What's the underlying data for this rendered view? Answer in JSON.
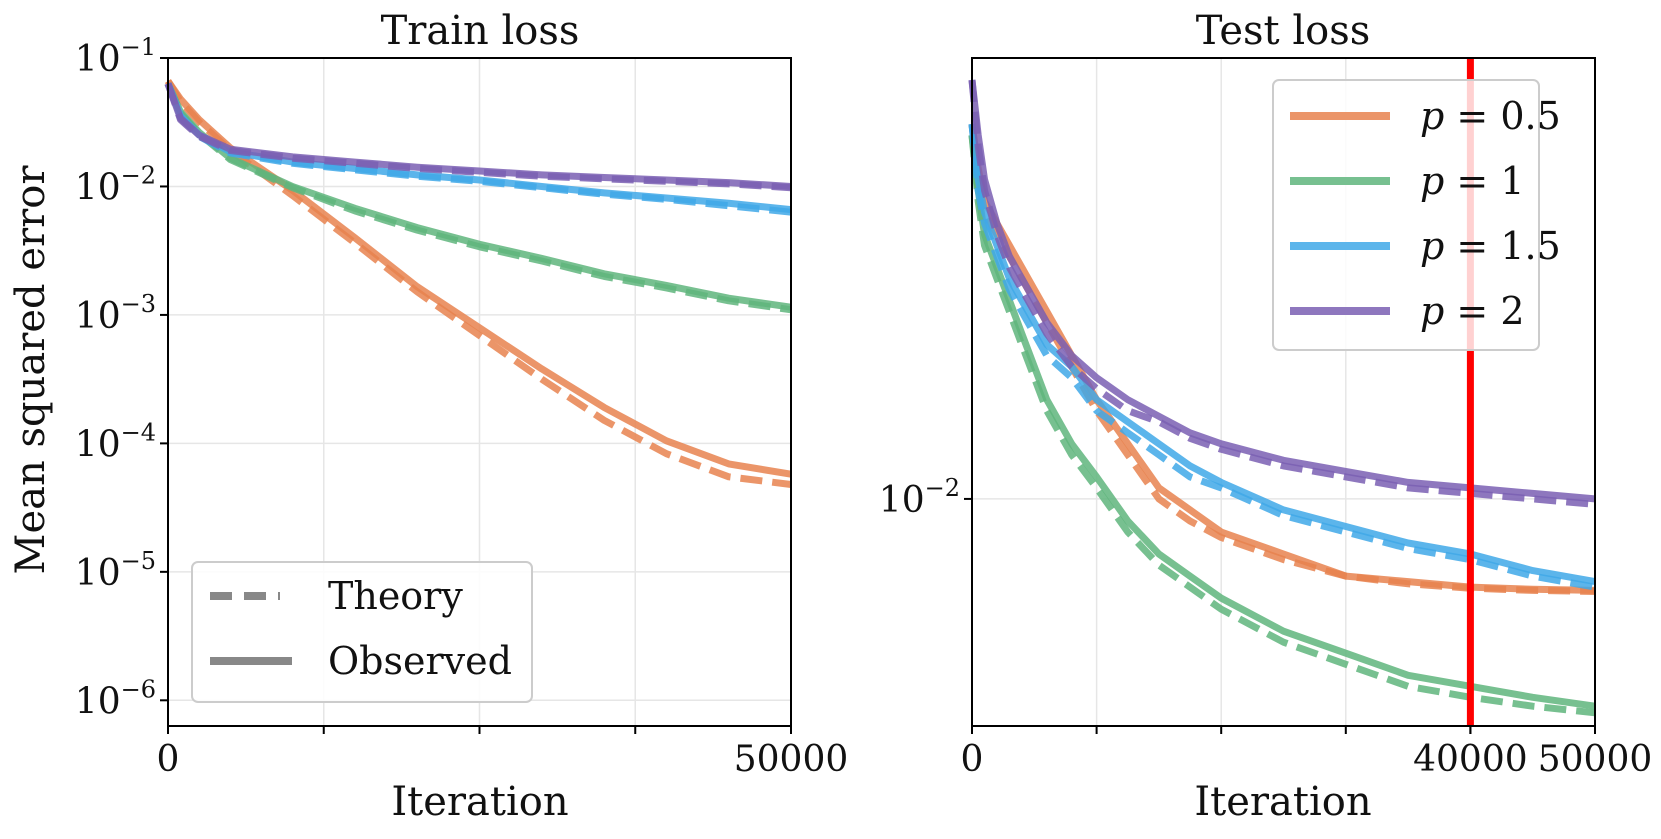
{
  "figure": {
    "ylabel": "Mean squared error"
  },
  "chart_data": [
    {
      "type": "line",
      "title": "Train loss",
      "xlabel": "Iteration",
      "ylabel": "Mean squared error",
      "yscale": "log",
      "xlim": [
        0,
        50000
      ],
      "ylim_exp": [
        -6.2,
        -1
      ],
      "xticks": [
        0,
        50000
      ],
      "xtick_labels": [
        "0",
        "50000"
      ],
      "yticks_exp": [
        -1,
        -2,
        -3,
        -4,
        -5,
        -6
      ],
      "ytick_base": "10",
      "ytick_exponents": [
        "−1",
        "−2",
        "−3",
        "−4",
        "−5",
        "−6"
      ],
      "grid": true,
      "colors": [
        "#E8834F",
        "#5FB57C",
        "#3FA8E8",
        "#7A5FB3"
      ],
      "x": [
        0,
        1000,
        2500,
        5000,
        10000,
        15000,
        20000,
        25000,
        30000,
        35000,
        40000,
        45000,
        50000
      ],
      "series": [
        {
          "name": "p=0.5",
          "style": "observed",
          "log10_values": [
            -1.18,
            -1.32,
            -1.48,
            -1.7,
            -2.03,
            -2.4,
            -2.78,
            -3.1,
            -3.42,
            -3.72,
            -3.98,
            -4.16,
            -4.24
          ]
        },
        {
          "name": "p=0.5",
          "style": "theory",
          "log10_values": [
            -1.18,
            -1.34,
            -1.5,
            -1.72,
            -2.07,
            -2.44,
            -2.82,
            -3.16,
            -3.5,
            -3.82,
            -4.08,
            -4.26,
            -4.32
          ]
        },
        {
          "name": "p=1",
          "style": "observed",
          "log10_values": [
            -1.2,
            -1.42,
            -1.58,
            -1.78,
            -2.0,
            -2.17,
            -2.32,
            -2.45,
            -2.56,
            -2.68,
            -2.77,
            -2.87,
            -2.94
          ]
        },
        {
          "name": "p=1",
          "style": "theory",
          "log10_values": [
            -1.2,
            -1.43,
            -1.59,
            -1.79,
            -2.01,
            -2.19,
            -2.34,
            -2.47,
            -2.58,
            -2.7,
            -2.79,
            -2.89,
            -2.96
          ]
        },
        {
          "name": "p=1.5",
          "style": "observed",
          "log10_values": [
            -1.2,
            -1.45,
            -1.6,
            -1.73,
            -1.81,
            -1.86,
            -1.91,
            -1.95,
            -2.0,
            -2.05,
            -2.09,
            -2.13,
            -2.18
          ]
        },
        {
          "name": "p=1.5",
          "style": "theory",
          "log10_values": [
            -1.2,
            -1.46,
            -1.61,
            -1.74,
            -1.82,
            -1.87,
            -1.92,
            -1.96,
            -2.01,
            -2.06,
            -2.1,
            -2.15,
            -2.2
          ]
        },
        {
          "name": "p=2",
          "style": "observed",
          "log10_values": [
            -1.2,
            -1.47,
            -1.6,
            -1.71,
            -1.77,
            -1.81,
            -1.85,
            -1.88,
            -1.91,
            -1.93,
            -1.95,
            -1.97,
            -2.0
          ]
        },
        {
          "name": "p=2",
          "style": "theory",
          "log10_values": [
            -1.2,
            -1.48,
            -1.61,
            -1.72,
            -1.78,
            -1.82,
            -1.86,
            -1.89,
            -1.92,
            -1.94,
            -1.96,
            -1.98,
            -2.01
          ]
        }
      ],
      "legend": {
        "position": "lower-left",
        "entries": [
          {
            "label": "Theory",
            "style": "dashed"
          },
          {
            "label": "Observed",
            "style": "solid"
          }
        ]
      }
    },
    {
      "type": "line",
      "title": "Test loss",
      "xlabel": "Iteration",
      "yscale": "log",
      "xlim": [
        0,
        50000
      ],
      "ylim_exp": [
        -2.206,
        -1.6
      ],
      "xticks": [
        0,
        40000,
        50000
      ],
      "xtick_labels": [
        "0",
        "40000",
        "50000"
      ],
      "yticks_exp": [
        -2
      ],
      "ytick_base": "10",
      "ytick_exponents": [
        "−2"
      ],
      "grid": true,
      "vline": {
        "x": 40000,
        "color": "#FF0000"
      },
      "colors": [
        "#E8834F",
        "#5FB57C",
        "#3FA8E8",
        "#7A5FB3"
      ],
      "x": [
        0,
        500,
        1000,
        2000,
        3000,
        4000,
        5000,
        6000,
        8000,
        10000,
        12500,
        15000,
        17500,
        20000,
        25000,
        30000,
        35000,
        40000,
        45000,
        50000
      ],
      "series": [
        {
          "name": "p=0.5",
          "style": "observed",
          "log10_values": [
            -1.66,
            -1.7,
            -1.73,
            -1.75,
            -1.77,
            -1.79,
            -1.81,
            -1.83,
            -1.87,
            -1.91,
            -1.95,
            -1.99,
            -2.01,
            -2.03,
            -2.05,
            -2.07,
            -2.075,
            -2.08,
            -2.082,
            -2.083
          ]
        },
        {
          "name": "p=0.5",
          "style": "theory",
          "log10_values": [
            -1.66,
            -1.71,
            -1.74,
            -1.76,
            -1.78,
            -1.8,
            -1.82,
            -1.84,
            -1.88,
            -1.92,
            -1.96,
            -2.0,
            -2.02,
            -2.035,
            -2.055,
            -2.07,
            -2.077,
            -2.081,
            -2.083,
            -2.084
          ]
        },
        {
          "name": "p=1",
          "style": "observed",
          "log10_values": [
            -1.67,
            -1.72,
            -1.76,
            -1.79,
            -1.82,
            -1.85,
            -1.88,
            -1.91,
            -1.95,
            -1.98,
            -2.02,
            -2.05,
            -2.07,
            -2.09,
            -2.12,
            -2.14,
            -2.16,
            -2.17,
            -2.18,
            -2.188
          ]
        },
        {
          "name": "p=1",
          "style": "theory",
          "log10_values": [
            -1.67,
            -1.73,
            -1.77,
            -1.8,
            -1.83,
            -1.86,
            -1.89,
            -1.92,
            -1.96,
            -1.99,
            -2.03,
            -2.06,
            -2.08,
            -2.1,
            -2.13,
            -2.15,
            -2.17,
            -2.18,
            -2.188,
            -2.194
          ]
        },
        {
          "name": "p=1.5",
          "style": "observed",
          "log10_values": [
            -1.66,
            -1.71,
            -1.74,
            -1.77,
            -1.8,
            -1.82,
            -1.84,
            -1.86,
            -1.88,
            -1.91,
            -1.93,
            -1.95,
            -1.97,
            -1.985,
            -2.01,
            -2.025,
            -2.04,
            -2.05,
            -2.065,
            -2.075
          ]
        },
        {
          "name": "p=1.5",
          "style": "theory",
          "log10_values": [
            -1.66,
            -1.72,
            -1.75,
            -1.78,
            -1.81,
            -1.83,
            -1.85,
            -1.87,
            -1.89,
            -1.92,
            -1.94,
            -1.96,
            -1.98,
            -1.99,
            -2.015,
            -2.03,
            -2.045,
            -2.055,
            -2.07,
            -2.08
          ]
        },
        {
          "name": "p=2",
          "style": "observed",
          "log10_values": [
            -1.62,
            -1.67,
            -1.71,
            -1.75,
            -1.78,
            -1.8,
            -1.82,
            -1.84,
            -1.87,
            -1.89,
            -1.91,
            -1.925,
            -1.94,
            -1.95,
            -1.965,
            -1.975,
            -1.985,
            -1.99,
            -1.995,
            -2.0
          ]
        },
        {
          "name": "p=2",
          "style": "theory",
          "log10_values": [
            -1.62,
            -1.68,
            -1.72,
            -1.76,
            -1.79,
            -1.81,
            -1.83,
            -1.85,
            -1.88,
            -1.9,
            -1.92,
            -1.93,
            -1.945,
            -1.955,
            -1.97,
            -1.98,
            -1.99,
            -1.995,
            -2.0,
            -2.005
          ]
        }
      ],
      "legend": {
        "position": "top-right",
        "entries": [
          {
            "label": "p = 0.5",
            "var": "p",
            "value": "0.5",
            "color": "#E8834F"
          },
          {
            "label": "p = 1",
            "var": "p",
            "value": "1",
            "color": "#5FB57C"
          },
          {
            "label": "p = 1.5",
            "var": "p",
            "value": "1.5",
            "color": "#3FA8E8"
          },
          {
            "label": "p = 2",
            "var": "p",
            "value": "2",
            "color": "#7A5FB3"
          }
        ]
      }
    }
  ]
}
